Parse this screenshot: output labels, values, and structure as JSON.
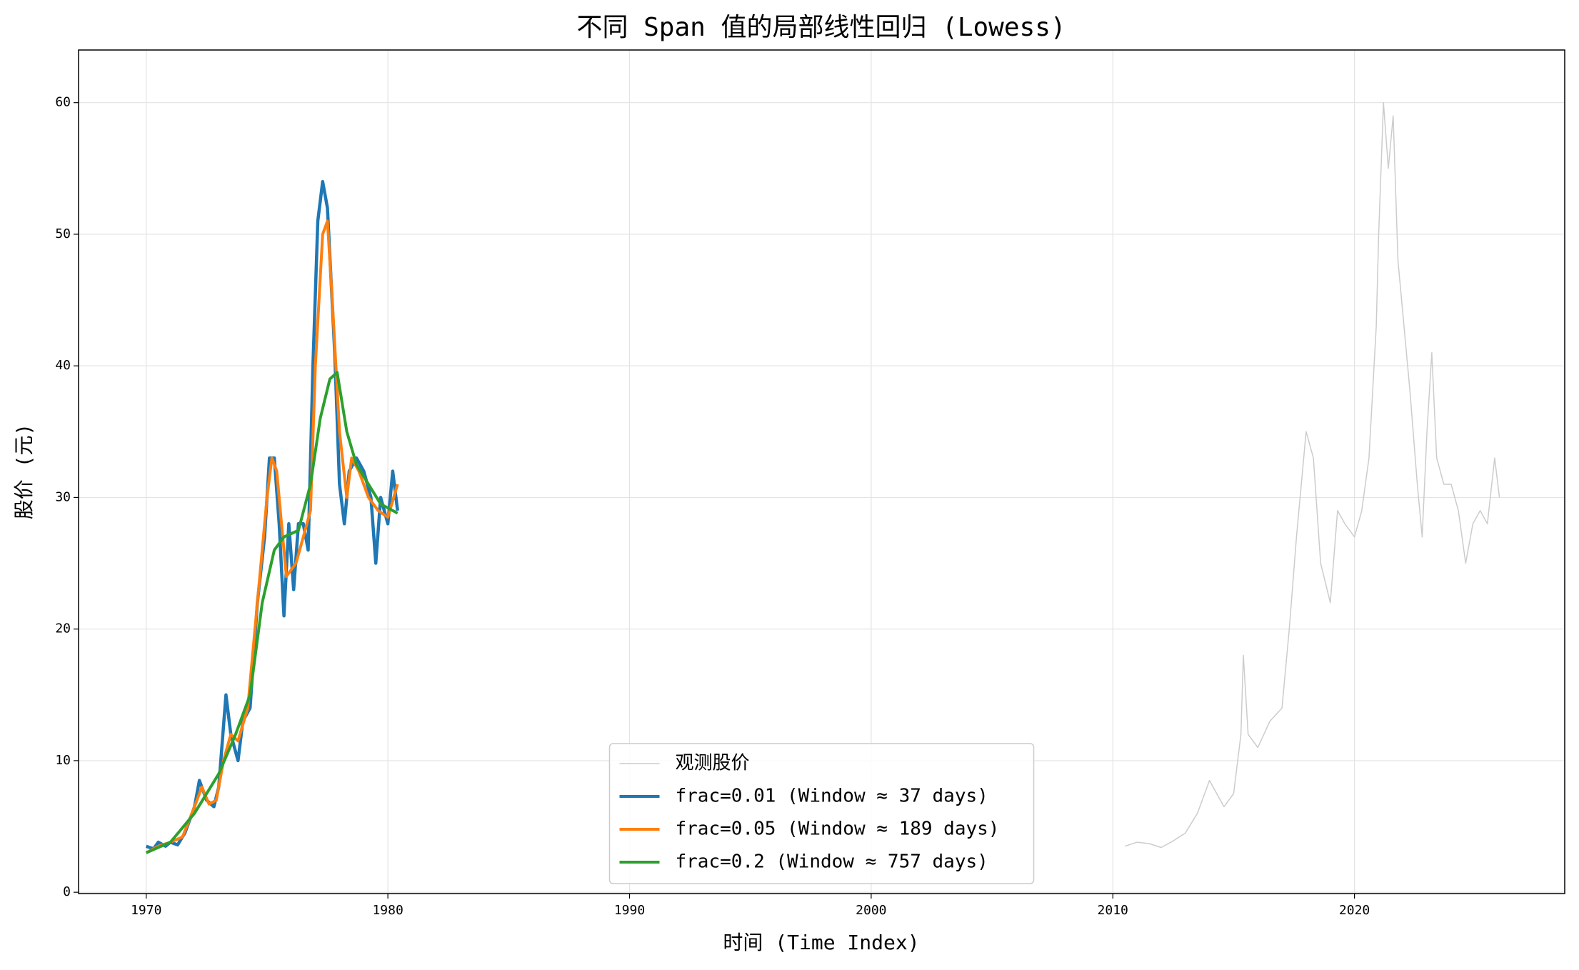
{
  "chart_data": {
    "type": "line",
    "title": "不同 Span 值的局部线性回归 (Lowess)",
    "x_label": "时间 (Time Index)",
    "y_label": "股价 (元)",
    "xlim": [
      1967.2,
      2028.7
    ],
    "ylim": [
      -0.1,
      64
    ],
    "xticks": [
      1970,
      1980,
      1990,
      2000,
      2010,
      2020
    ],
    "yticks": [
      0,
      10,
      20,
      30,
      40,
      50,
      60
    ],
    "grid": true,
    "legend_position": "lower center",
    "series": [
      {
        "name": "观测股价",
        "color": "#cccccc",
        "width": 1.5,
        "x": [
          2010.5,
          2011,
          2011.5,
          2012,
          2012.5,
          2013,
          2013.5,
          2014,
          2014.3,
          2014.6,
          2015,
          2015.3,
          2015.4,
          2015.6,
          2016,
          2016.5,
          2017,
          2017.3,
          2017.6,
          2018,
          2018.3,
          2018.6,
          2019,
          2019.3,
          2019.6,
          2020,
          2020.3,
          2020.6,
          2020.9,
          2021,
          2021.2,
          2021.4,
          2021.6,
          2021.8,
          2022,
          2022.3,
          2022.6,
          2022.8,
          2023,
          2023.2,
          2023.4,
          2023.7,
          2024,
          2024.3,
          2024.6,
          2024.9,
          2025.2,
          2025.5,
          2025.8,
          2026
        ],
        "values": [
          3.5,
          3.8,
          3.7,
          3.4,
          3.9,
          4.5,
          6,
          8.5,
          7.5,
          6.5,
          7.5,
          12,
          18,
          12,
          11,
          13,
          14,
          20,
          27,
          35,
          33,
          25,
          22,
          29,
          28,
          27,
          29,
          33,
          43,
          50,
          60,
          55,
          59,
          48,
          44,
          38,
          31,
          27,
          35,
          41,
          33,
          31,
          31,
          29,
          25,
          28,
          29,
          28,
          33,
          30
        ]
      },
      {
        "name": "frac=0.01 (Window ≈ 37 days)",
        "color": "#1f77b4",
        "width": 4.5,
        "x": [
          1970,
          1970.3,
          1970.5,
          1970.8,
          1971,
          1971.3,
          1971.6,
          1972,
          1972.2,
          1972.5,
          1972.8,
          1973,
          1973.3,
          1973.5,
          1973.8,
          1974,
          1974.3,
          1974.6,
          1974.9,
          1975.1,
          1975.3,
          1975.5,
          1975.7,
          1975.9,
          1976.1,
          1976.3,
          1976.5,
          1976.7,
          1976.9,
          1977.1,
          1977.3,
          1977.5,
          1977.8,
          1978,
          1978.2,
          1978.4,
          1978.7,
          1979,
          1979.3,
          1979.5,
          1979.7,
          1980,
          1980.2,
          1980.4
        ],
        "values": [
          3.5,
          3.3,
          3.8,
          3.5,
          3.8,
          3.6,
          4.5,
          6.5,
          8.5,
          7,
          6.5,
          8,
          15,
          12,
          10,
          13,
          14,
          22,
          27,
          33,
          33,
          28,
          21,
          28,
          23,
          28,
          28,
          26,
          40,
          51,
          54,
          52,
          41,
          31,
          28,
          32,
          33,
          32,
          30,
          25,
          30,
          28,
          32,
          29
        ]
      },
      {
        "name": "frac=0.05 (Window ≈ 189 days)",
        "color": "#ff7f0e",
        "width": 4,
        "x": [
          1970,
          1970.5,
          1971,
          1971.5,
          1972,
          1972.3,
          1972.6,
          1972.9,
          1973.2,
          1973.5,
          1973.8,
          1974.2,
          1974.6,
          1975,
          1975.2,
          1975.4,
          1975.6,
          1975.8,
          1976.2,
          1976.5,
          1976.8,
          1977,
          1977.3,
          1977.5,
          1977.7,
          1978,
          1978.3,
          1978.5,
          1978.8,
          1979.2,
          1979.6,
          1980,
          1980.4
        ],
        "values": [
          3,
          3.5,
          3.8,
          4.2,
          6.5,
          8,
          6.7,
          7,
          10,
          12,
          11.5,
          14,
          22,
          30,
          33,
          32,
          28,
          24,
          25,
          27,
          29,
          40,
          50,
          51,
          45,
          35,
          30,
          33,
          32,
          30,
          29,
          28.5,
          31
        ]
      },
      {
        "name": "frac=0.2 (Window ≈ 757 days)",
        "color": "#2ca02c",
        "width": 4,
        "x": [
          1970,
          1971,
          1972,
          1973,
          1973.7,
          1974.3,
          1974.8,
          1975.3,
          1975.7,
          1976.3,
          1976.8,
          1977.2,
          1977.6,
          1977.9,
          1978.3,
          1978.7,
          1979.2,
          1979.7,
          1980.4
        ],
        "values": [
          3,
          3.8,
          6,
          9,
          12,
          15,
          22,
          26,
          27,
          27.5,
          31,
          36,
          39,
          39.5,
          35,
          32.5,
          31,
          29.5,
          28.8
        ]
      }
    ]
  }
}
